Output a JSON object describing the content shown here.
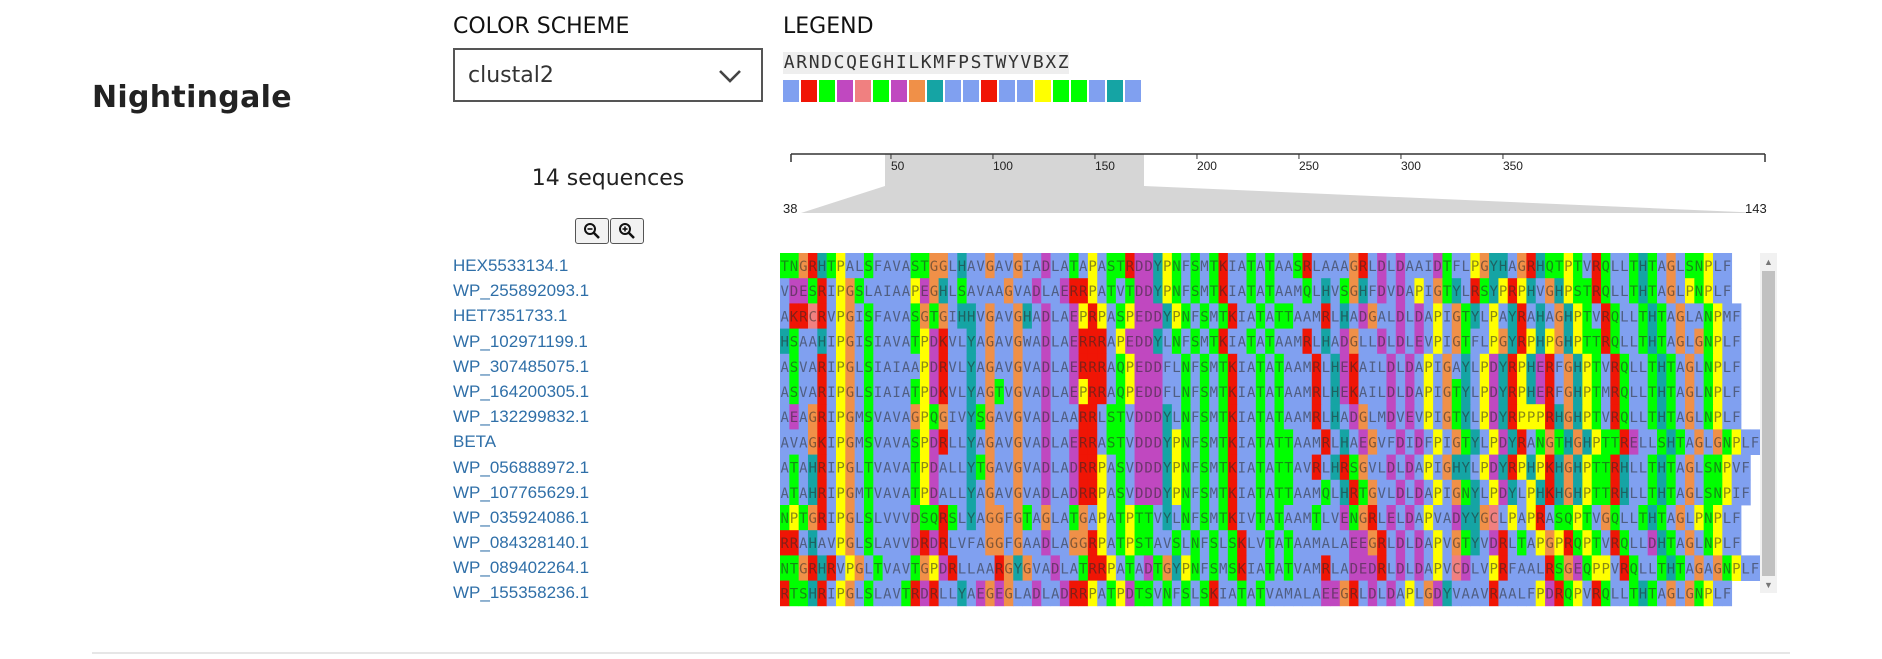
{
  "page": {
    "title": "Nightingale"
  },
  "color_scheme": {
    "label": "COLOR SCHEME",
    "selected": "clustal2"
  },
  "legend": {
    "label": "LEGEND",
    "letters": [
      "A",
      "R",
      "N",
      "D",
      "C",
      "Q",
      "E",
      "G",
      "H",
      "I",
      "L",
      "K",
      "M",
      "F",
      "P",
      "S",
      "T",
      "W",
      "Y",
      "V",
      "B",
      "X",
      "Z"
    ],
    "colors": [
      "#80a0f0",
      "#f01505",
      "#00ff00",
      "#c048c0",
      "#f08080",
      "#00ff00",
      "#c048c0",
      "#f09048",
      "#15a4a4",
      "#80a0f0",
      "#80a0f0",
      "#f01505",
      "#80a0f0",
      "#80a0f0",
      "#ffff00",
      "#00ff00",
      "#00ff00",
      "#80a0f0",
      "#15a4a4",
      "#80a0f0"
    ]
  },
  "sequences": {
    "count_label": "14 sequences",
    "names": [
      "HEX5533134.1",
      "WP_255892093.1",
      "HET7351733.1",
      "WP_102971199.1",
      "WP_307485075.1",
      "WP_164200305.1",
      "WP_132299832.1",
      "BETA",
      "WP_056888972.1",
      "WP_107765629.1",
      "WP_035924086.1",
      "WP_084328140.1",
      "WP_089402264.1",
      "WP_155358236.1"
    ]
  },
  "navigation": {
    "ticks": [
      "50",
      "100",
      "150",
      "200",
      "250",
      "300",
      "350"
    ],
    "window_start": "38",
    "window_end": "143"
  },
  "icons": {
    "zoom_out": "zoom-out-icon",
    "zoom_in": "zoom-in-icon",
    "dropdown": "chevron-down-icon"
  },
  "alignment": {
    "rows": [
      "TNGRHTPALSFAVASTGGLHAVGAVGIADLATAPASTRDDYPNFSMTKIATATAASRLAAAGRLDLDAAIDTFLPGYHAGRHQTPTVRQLLTHTAGLSNPLF",
      "VDESRIPGSLAIAAPEGHLSAVAAGVADLAERRPATVTDDYPNFSMTKIATATAAMQLHVSGHFDVDAPIGTYLRSYPRPHVGHPSTRQLLTHTAGLPNPLF",
      "AKRCRVPGISFAVASGTGIHHVGAVGHADLAEPRPASPEDDYPNFSMTKIATATTAAMRLHADGALDLDAPIGTYLPAYRAHAGHPTVRQLLTHTAGLANPMF",
      "HSAAHIPGISIAVATPDKVLYAGAVGWADLAERRRAPEDDYLNFSMTKIATATAAMRLHADGLLDLDLEVPIGTFLPGYRPHPGHPTTRQLLTHTAGLGNPLF",
      "ASVARIPGLSIAIAAPDRVLYAGAVGVADLAERRRAQPEDDFLNFSMTKIATATAAMRLHEKAILDLDAPIGAYLPDYRPHERFGHPTVRQLLTHTAGLNPLF",
      "ASVARIPGLSIAIATPDKVLYAGTVGVADLAEPRRAQPEDDFLNFSMTKIATATAAMRLHEKAILDLDAPIGTYLPDYRPHERFGHPTMRQLLTHTAGLNPLF",
      "AEAGRIPGMSVAVAGPQGIVYSGAVGVADLAARRLSTVDDDYLNFSMTKIATATAAMRLHADGLMDVEVPIGTYLPDYRPPPRHGHPTVRQLLTHTAGLNPLF",
      "AVAGKIPGMSVAVASPDRLLYAGAVGVADLAERRASTVDDDYPNFSMTKIATATTAAMRLHAEGVFDIDFPIGTYLPDYRANGTHGHPTTRELLSHTAGLGNPLF",
      "ATAHRIPGLTVAVATPDALLYTGAVGVADLADRRPASVDDDYPNFSMTKIATATTAVRLHRSGVLDLDAPIGHYLPDYRPHPKHGHPTTRHLLTHTAGLSNPVF",
      "ATAHRIPGMTVAVATPDALLYAGAVGVADLADRRPASVDDDYPNFSMTKIATATTAAMQLHRTGVLDLDAPIGNYLPDYLPHKHGHPTTRHLLTHTAGLSNPIF",
      "NPTGRIPGLSLVVVDSQRSLYAGGFGTAGLATGAPATPTTVYLNFSMTKIVTATAAMTLVENGRLELDAPVADYYGCLPAPRASQPTVGQLLTHTAGLPNPLF",
      "RRAHAVPGLSLAVVDRDRLVFAGGFGAADLAGGRPATPSTAVSLNFSLSKLVTATAAMALAEEGRLDLDAPVGTYVDRLTAPGPRQPTVRQLLDHTAGLNPLF",
      "NTGRHRVPGLTVAVTGPDRLLAARGYGVADLATRRPATADTGYPNFSMSKIATATVAMRLADEDRLDLDAPVCDLVPRFAALRSGEQPPVRQLLTHTAGAGNPLF",
      "RTSHRIPGLSLAVTRDRLLYAEGEGLADLADRRPATPDTSVNFSLSKIATATVAMALAEEGRLDLDAPLGDYVAAVRAALFPDRQPVRQLLTHTAGLGNPLF"
    ]
  }
}
